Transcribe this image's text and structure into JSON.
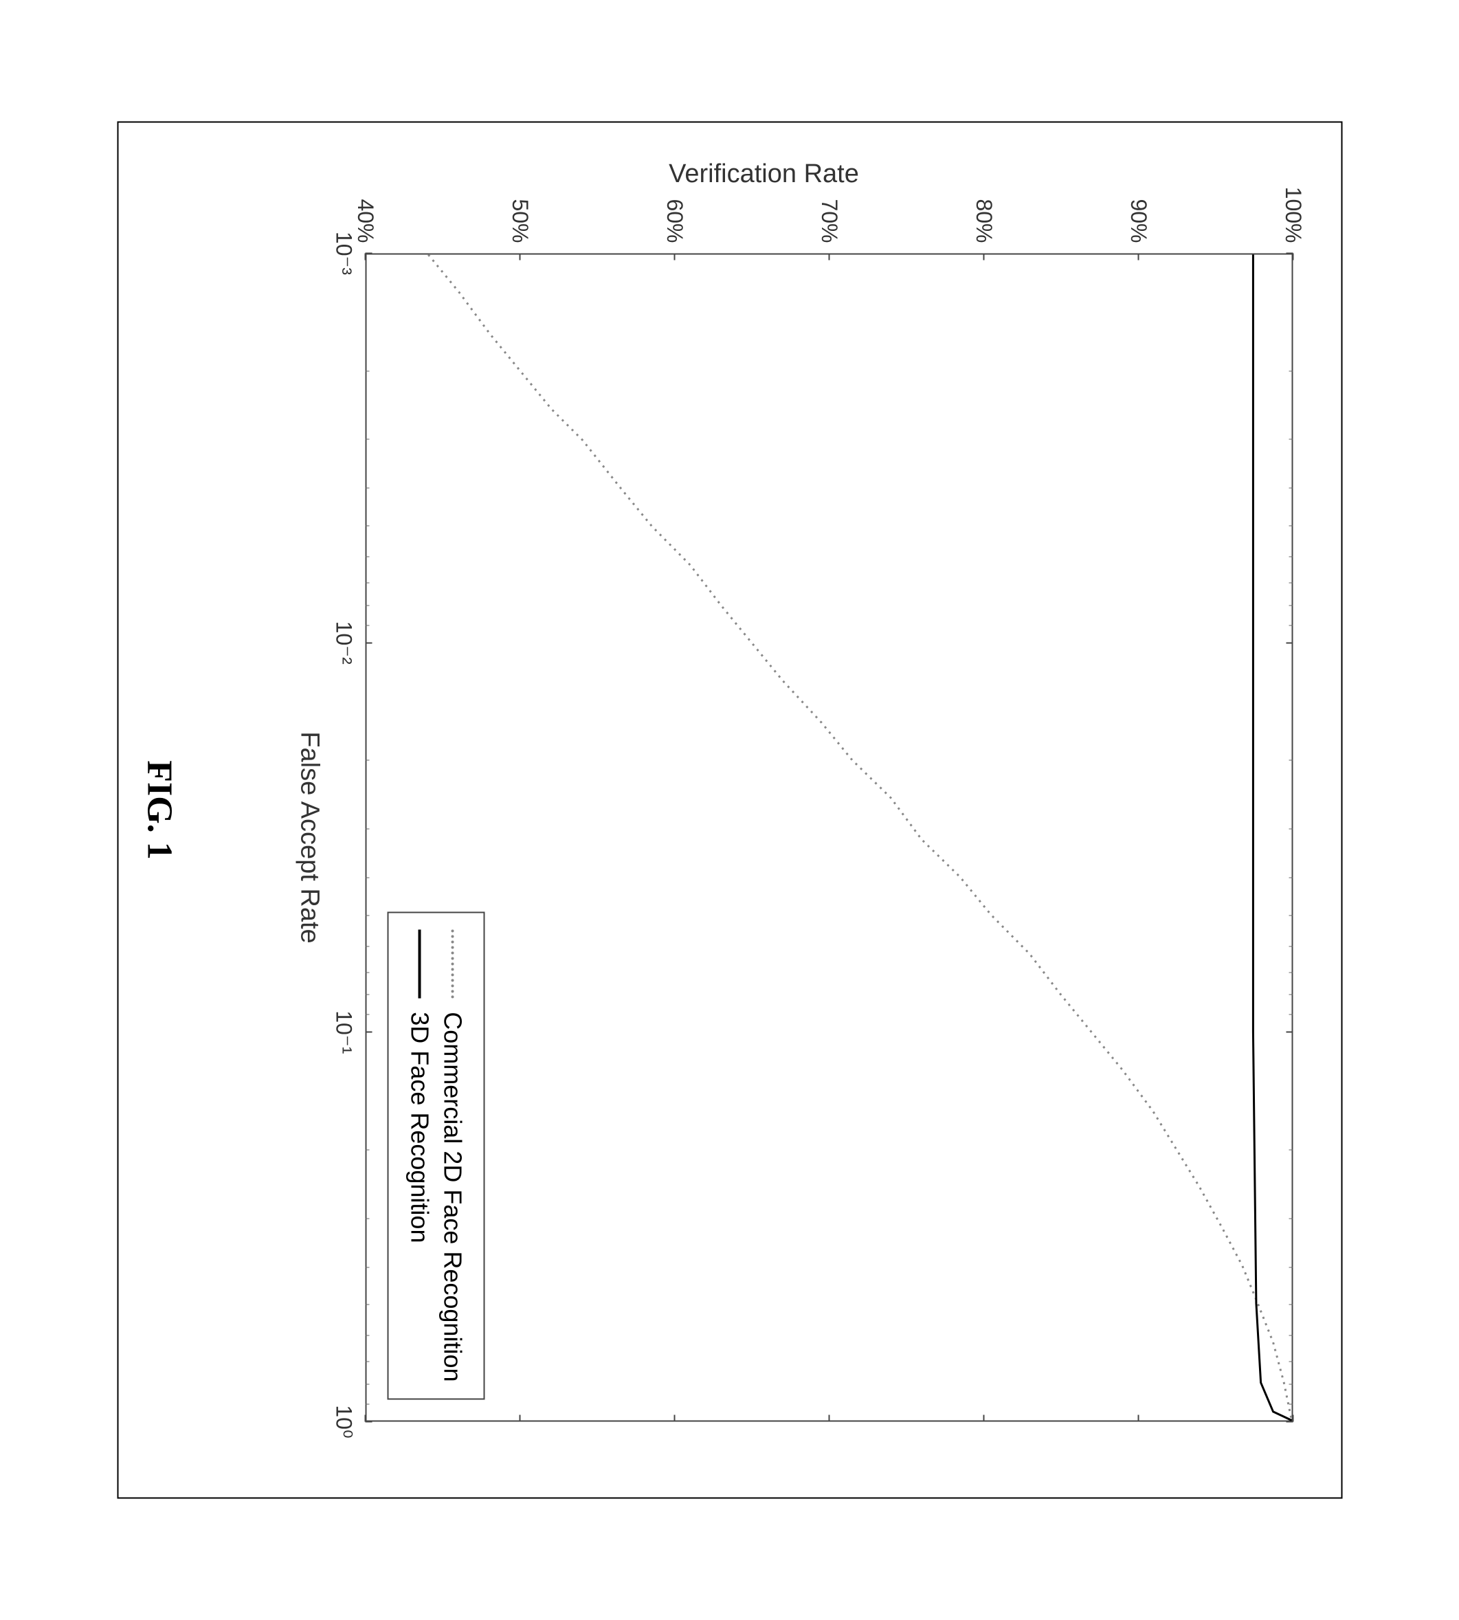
{
  "figure_label": "FIG. 1",
  "chart": {
    "type": "line",
    "xlabel": "False Accept Rate",
    "ylabel": "Verification Rate",
    "xscale": "log",
    "xlim": [
      0.001,
      1.0
    ],
    "ylim": [
      40,
      100
    ],
    "ytick_step_percent": 10,
    "yticks": [
      "40%",
      "50%",
      "60%",
      "70%",
      "80%",
      "90%",
      "100%"
    ],
    "xticks_values": [
      0.001,
      0.01,
      0.1,
      1.0
    ],
    "xticks_labels": [
      "10⁻³",
      "10⁻²",
      "10⁻¹",
      "10⁰"
    ],
    "background_color": "#ffffff",
    "axis_color": "#444444",
    "tick_fontsize": 32,
    "label_fontsize": 38,
    "minor_ticks": true,
    "legend": {
      "position": "lower-right",
      "border_color": "#444444",
      "items": [
        {
          "label": "Commercial 2D Face Recognition",
          "style": "dotted",
          "color": "#888888",
          "line_width": 3
        },
        {
          "label": "3D Face Recognition",
          "style": "solid",
          "color": "#000000",
          "line_width": 3
        }
      ]
    },
    "series": [
      {
        "name": "Commercial 2D Face Recognition",
        "style": "dotted",
        "color": "#888888",
        "line_width": 3,
        "points_x": [
          0.001,
          0.00125,
          0.0016,
          0.002,
          0.0025,
          0.003,
          0.004,
          0.005,
          0.0063,
          0.008,
          0.01,
          0.0125,
          0.016,
          0.02,
          0.025,
          0.032,
          0.04,
          0.05,
          0.063,
          0.08,
          0.1,
          0.125,
          0.16,
          0.2,
          0.25,
          0.32,
          0.4,
          0.5,
          0.63,
          0.8,
          1.0
        ],
        "points_y": [
          44,
          46,
          48,
          50,
          52,
          54,
          56.5,
          58.5,
          61,
          63,
          65,
          67,
          69.5,
          71.5,
          74,
          76,
          78.5,
          80.5,
          83,
          85,
          87,
          89,
          91,
          92.5,
          94,
          95.5,
          96.8,
          97.8,
          98.8,
          99.5,
          100
        ]
      },
      {
        "name": "3D Face Recognition",
        "style": "solid",
        "color": "#000000",
        "line_width": 3,
        "points_x": [
          0.001,
          0.01,
          0.1,
          0.5,
          0.8,
          0.95,
          1.0
        ],
        "points_y": [
          97.5,
          97.5,
          97.5,
          97.7,
          98.0,
          98.8,
          100
        ]
      }
    ]
  }
}
